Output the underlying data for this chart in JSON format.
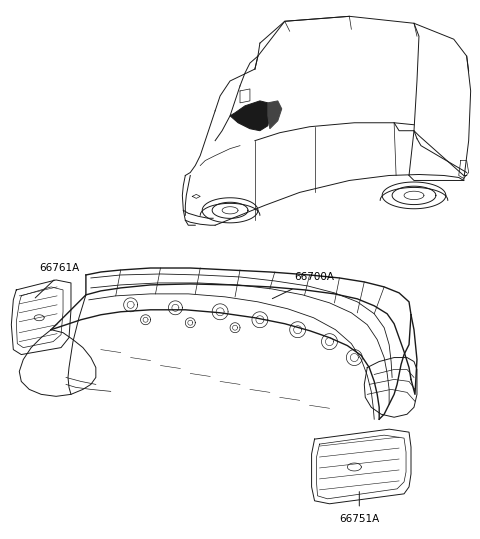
{
  "background_color": "#ffffff",
  "line_color": "#1a1a1a",
  "label_color": "#000000",
  "figsize": [
    4.8,
    5.39
  ],
  "dpi": 100,
  "labels": {
    "66761A": [
      0.055,
      0.618
    ],
    "66700A": [
      0.46,
      0.565
    ],
    "66751A": [
      0.63,
      0.238
    ]
  }
}
